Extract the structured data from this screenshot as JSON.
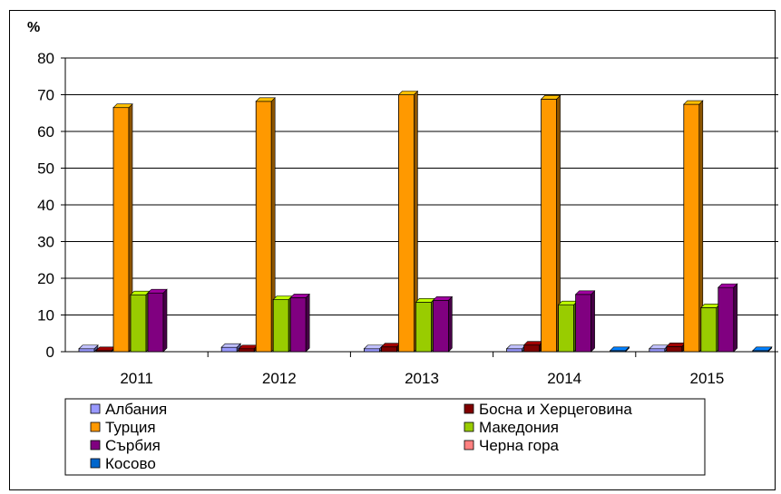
{
  "chart_data": {
    "type": "bar",
    "unit_label": "%",
    "categories": [
      "2011",
      "2012",
      "2013",
      "2014",
      "2015"
    ],
    "ylim": [
      0,
      80
    ],
    "y_ticks": [
      "0",
      "10",
      "20",
      "30",
      "40",
      "50",
      "60",
      "70",
      "80"
    ],
    "grid": true,
    "legend_position": "bottom",
    "series": [
      {
        "name": "Албания",
        "color": "#9999ff",
        "values": [
          0.8,
          1.2,
          0.8,
          0.8,
          0.8
        ]
      },
      {
        "name": "Босна и Херцеговина",
        "color": "#800000",
        "values": [
          0.3,
          0.8,
          1.3,
          1.8,
          1.4
        ]
      },
      {
        "name": "Турция",
        "color": "#ff9900",
        "values": [
          66.5,
          68.2,
          70.0,
          68.8,
          67.4
        ]
      },
      {
        "name": "Македония",
        "color": "#99cc00",
        "values": [
          15.5,
          14.2,
          13.5,
          12.8,
          12.0
        ]
      },
      {
        "name": "Сърбия",
        "color": "#800080",
        "values": [
          16.0,
          14.7,
          14.0,
          15.6,
          17.5
        ]
      },
      {
        "name": "Черна гора",
        "color": "#ff8080",
        "values": [
          0,
          0,
          0,
          0,
          0
        ]
      },
      {
        "name": "Косово",
        "color": "#0066cc",
        "values": [
          0,
          0,
          0,
          0.3,
          0.3
        ]
      }
    ]
  }
}
